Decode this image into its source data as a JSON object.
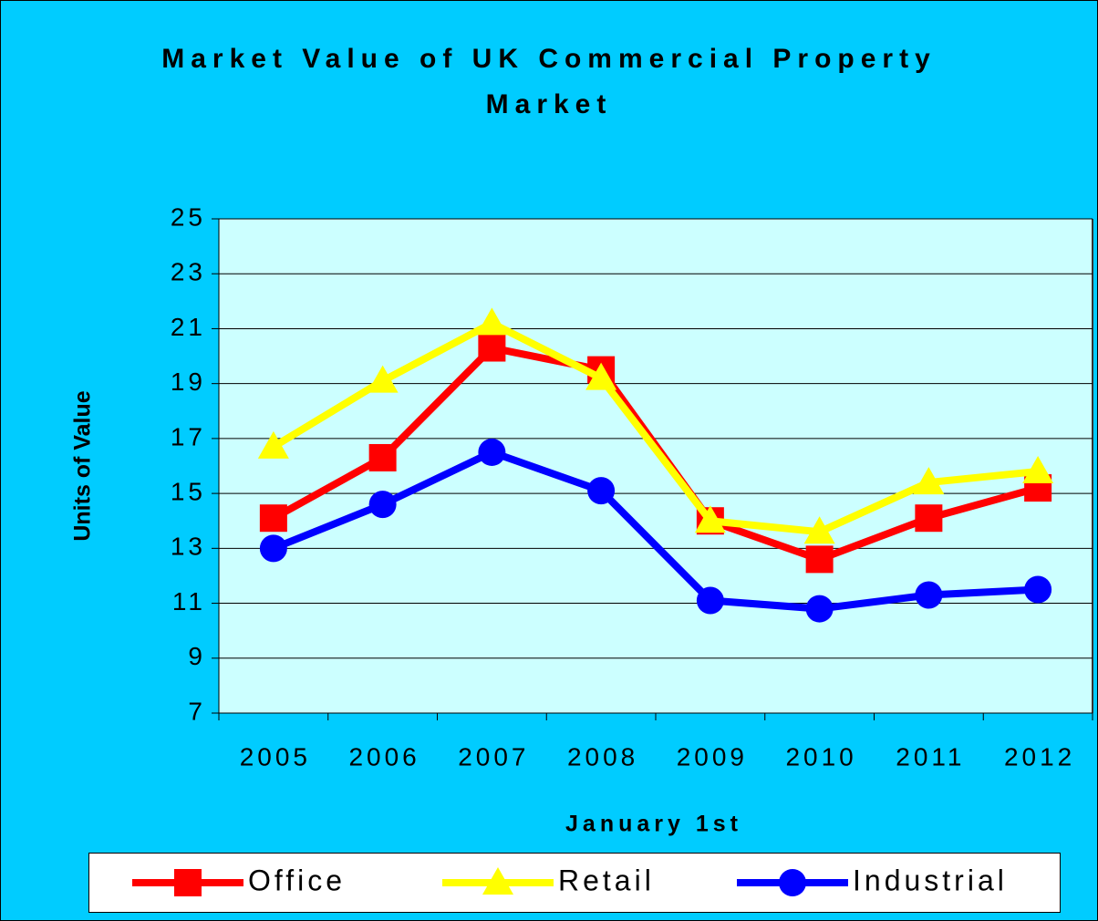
{
  "chart_data": {
    "type": "line",
    "title": "Market Value of UK Commercial Property Market",
    "x_label": "January 1st",
    "y_label": "Units of Value",
    "categories": [
      "2005",
      "2006",
      "2007",
      "2008",
      "2009",
      "2010",
      "2011",
      "2012"
    ],
    "series": [
      {
        "name": "Office",
        "color": "#ff0000",
        "marker": "square",
        "values": [
          14.1,
          16.3,
          20.3,
          19.5,
          14.0,
          12.6,
          14.1,
          15.2
        ]
      },
      {
        "name": "Retail",
        "color": "#ffff00",
        "marker": "triangle",
        "values": [
          16.7,
          19.1,
          21.2,
          19.2,
          14.0,
          13.6,
          15.4,
          15.8
        ]
      },
      {
        "name": "Industrial",
        "color": "#0000ff",
        "marker": "circle",
        "values": [
          13.0,
          14.6,
          16.5,
          15.1,
          11.1,
          10.8,
          11.3,
          11.5
        ]
      }
    ],
    "ylim": [
      7,
      25
    ],
    "yticks": [
      7,
      9,
      11,
      13,
      15,
      17,
      19,
      21,
      23,
      25
    ],
    "grid": true,
    "legend": "bottom"
  }
}
